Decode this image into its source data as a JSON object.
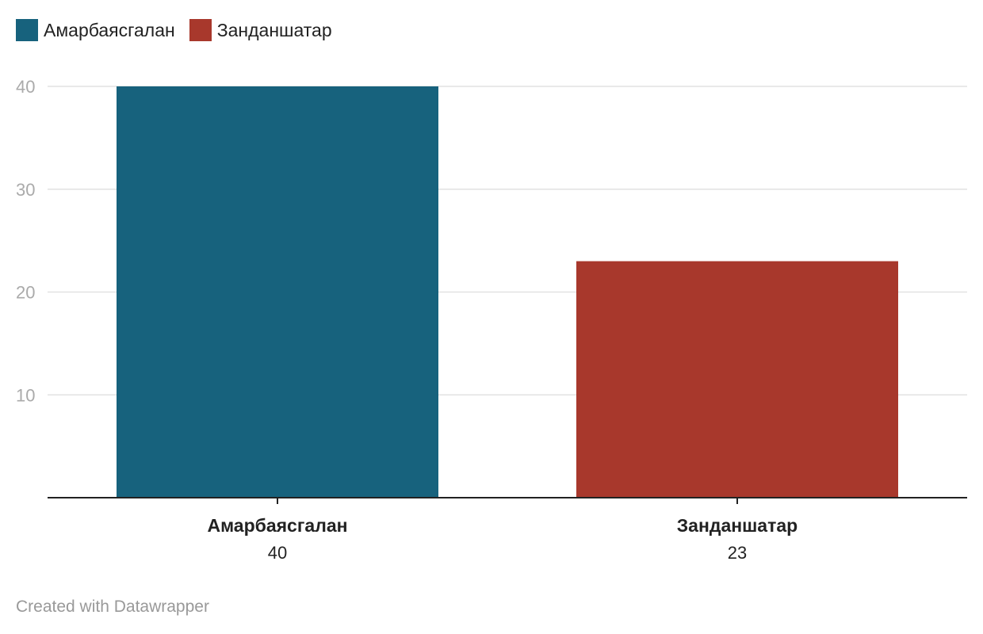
{
  "legend": [
    {
      "label": "Амарбаясгалан",
      "color": "#17627d"
    },
    {
      "label": "Занданшатар",
      "color": "#a8382c"
    }
  ],
  "chart_data": {
    "type": "bar",
    "title": "",
    "xlabel": "",
    "ylabel": "",
    "categories": [
      "Амарбаясгалан",
      "Занданшатар"
    ],
    "values": [
      40,
      23
    ],
    "value_labels": [
      "40",
      "23"
    ],
    "colors": [
      "#17627d",
      "#a8382c"
    ],
    "ylim": [
      0,
      40
    ],
    "yticks": [
      10,
      20,
      30,
      40
    ],
    "ytick_labels": [
      "10",
      "20",
      "30",
      "40"
    ],
    "grid": true,
    "legend_position": "top-left"
  },
  "footer": {
    "credit": "Created with Datawrapper"
  }
}
